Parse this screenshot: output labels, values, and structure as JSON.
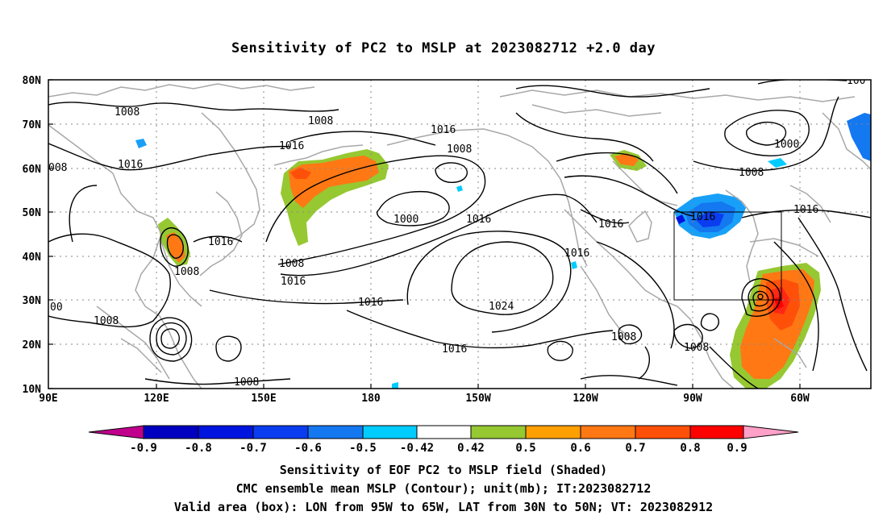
{
  "title": "Sensitivity of PC2 to MSLP at 2023082712 +2.0 day",
  "lat_labels": [
    "80N",
    "70N",
    "60N",
    "50N",
    "40N",
    "30N",
    "20N",
    "10N"
  ],
  "lon_labels": [
    "90E",
    "120E",
    "150E",
    "180",
    "150W",
    "120W",
    "90W",
    "60W"
  ],
  "contour_labels": [
    {
      "text": "1008"
    },
    {
      "text": "1008"
    },
    {
      "text": "1016"
    },
    {
      "text": "1016"
    },
    {
      "text": "1008"
    },
    {
      "text": "1016"
    },
    {
      "text": "1000"
    },
    {
      "text": "1016"
    },
    {
      "text": "1016"
    },
    {
      "text": "1016"
    },
    {
      "text": "1008"
    },
    {
      "text": "1016"
    },
    {
      "text": "1008"
    },
    {
      "text": "1016"
    },
    {
      "text": "1024"
    },
    {
      "text": "1008"
    },
    {
      "text": "1016"
    },
    {
      "text": "1008"
    },
    {
      "text": "1008"
    },
    {
      "text": "1016"
    },
    {
      "text": "1000"
    },
    {
      "text": "1008"
    },
    {
      "text": "1016"
    },
    {
      "text": "1016"
    },
    {
      "text": "008"
    },
    {
      "text": "00"
    },
    {
      "text": "100"
    }
  ],
  "colorbar": {
    "labels": [
      "-0.9",
      "-0.8",
      "-0.7",
      "-0.6",
      "-0.5",
      "-0.42",
      "0.42",
      "0.5",
      "0.6",
      "0.7",
      "0.8",
      "0.9"
    ],
    "colors": [
      "#c0008c",
      "#0000c0",
      "#0014e0",
      "#0a3cf0",
      "#1478f0",
      "#18a0f8",
      "#00ccff",
      "#ffffff",
      "#96c832",
      "#ffa000",
      "#ff7814",
      "#ff500a",
      "#ff2814",
      "#ff0000",
      "#ffa0c8"
    ]
  },
  "captions": [
    "Sensitivity of EOF PC2 to MSLP field (Shaded)",
    "CMC ensemble mean MSLP (Contour); unit(mb); IT:2023082712",
    "Valid area (box): LON from 95W to 65W, LAT from 30N to 50N; VT: 2023082912"
  ]
}
